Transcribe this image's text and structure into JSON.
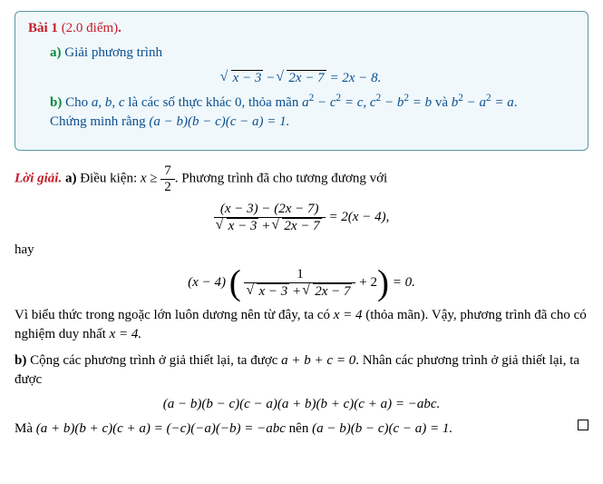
{
  "box": {
    "title_label": "Bài 1",
    "points": "(2.0 điểm)",
    "period": ".",
    "partA": {
      "label": "a)",
      "text": "Giải phương trình",
      "eq_lhs_sqrt1": "x − 3",
      "eq_minus": " − ",
      "eq_lhs_sqrt2": "2x − 7",
      "eq_eq": " = 2x − 8."
    },
    "partB": {
      "label": "b)",
      "text1": "Cho ",
      "abc": "a, b, c",
      "text2": " là các số thực khác 0, thỏa mãn ",
      "cond1": "a",
      "cond1b": " − c",
      "cond1c": " = c",
      "cond_comma": ", ",
      "cond2": "c",
      "cond2b": " − b",
      "cond2c": " = b",
      "cond3": "b",
      "cond3b": " − a",
      "cond3c": " = a",
      "and": " và ",
      "period2": ".",
      "text3": "Chứng minh rằng ",
      "prove": "(a − b)(b − c)(c − a) = 1."
    }
  },
  "solution": {
    "label": "Lời giải.",
    "a_label": "a)",
    "a_text1": " Điều kiện: ",
    "a_cond_lhs": "x ≥ ",
    "a_cond_num": "7",
    "a_cond_den": "2",
    "a_text2": ". Phương trình đã cho tương đương với",
    "eq1_num": "(x − 3) − (2x − 7)",
    "eq1_den_s1": "x − 3",
    "eq1_den_plus": " + ",
    "eq1_den_s2": "2x − 7",
    "eq1_rhs": " = 2(x − 4),",
    "hay": "hay",
    "eq2_pre": "(x − 4) ",
    "eq2_num": "1",
    "eq2_den_s1": "x − 3",
    "eq2_den_plus": " + ",
    "eq2_den_s2": "2x − 7",
    "eq2_plus2": " + 2",
    "eq2_rhs": " = 0.",
    "a_conclusion1": "Vì biểu thức trong ngoặc lớn luôn dương nên từ đây, ta có ",
    "a_x4": "x = 4",
    "a_conclusion2": " (thỏa mãn). Vậy, phương trình đã cho có nghiệm duy nhất ",
    "a_x4b": "x = 4.",
    "b_label": "b)",
    "b_text1": " Cộng các phương trình ở giả thiết lại, ta được ",
    "b_sum": "a + b + c = 0",
    "b_text2": ". Nhân các phương trình ở giả thiết lại, ta được",
    "b_eq": "(a − b)(b − c)(c − a)(a + b)(b + c)(c + a) = −abc.",
    "b_final1": "Mà ",
    "b_final2": "(a + b)(b + c)(c + a) = (−c)(−a)(−b) = −abc",
    "b_final3": " nên ",
    "b_final4": "(a − b)(b − c)(c − a) = 1."
  },
  "colors": {
    "box_border": "#5a96a8",
    "box_bg": "#f0f8fb",
    "red": "#c51d2a",
    "blue": "#0a4f8f",
    "green": "#0a8a3a"
  }
}
